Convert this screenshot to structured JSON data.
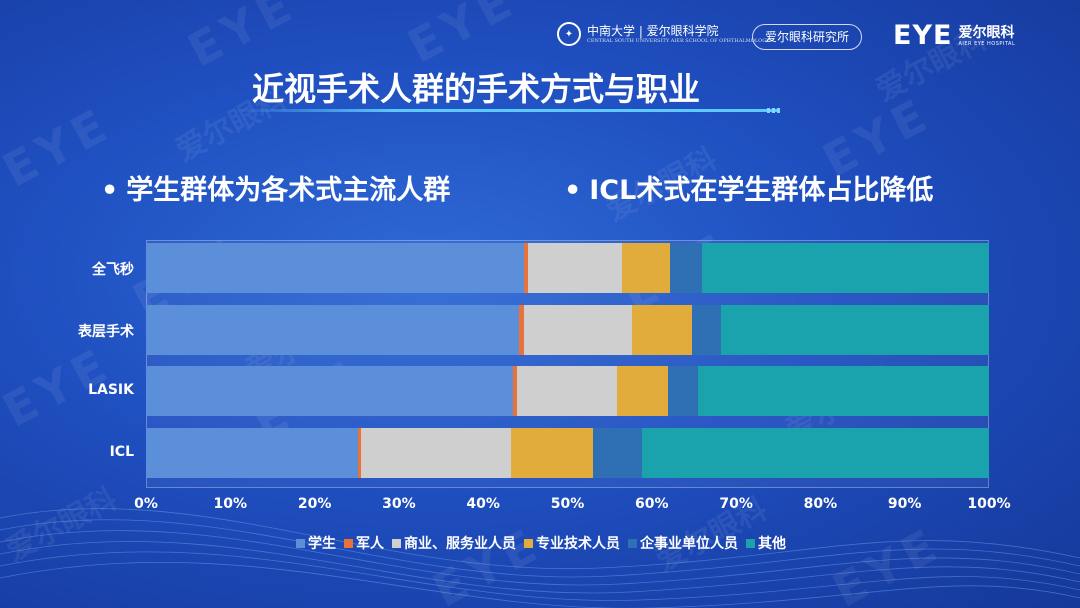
{
  "header": {
    "csu_logo_main": "中南大学 | 爱尔眼科学院",
    "csu_logo_sub": "CENTRAL SOUTH UNIVERSITY   AIER SCHOOL OF OPHTHALMOLOGY",
    "institute_label": "爱尔眼科研究所",
    "eye_logo_mark": "EYE",
    "eye_logo_cn": "爱尔眼科",
    "eye_logo_sub": "AIER EYE HOSPITAL"
  },
  "title": "近视手术人群的手术方式与职业",
  "bullets": {
    "left": "学生群体为各术式主流人群",
    "right": "ICL术式在学生群体占比降低",
    "dot": "•"
  },
  "watermark": {
    "mark": "EYE",
    "cn": "爱尔眼科",
    "en": "AIER EYE HOSPITAL"
  },
  "chart_data": {
    "type": "bar",
    "orientation": "horizontal",
    "stacked": "percent",
    "title": "",
    "categories": [
      "全飞秒",
      "表层手术",
      "LASIK",
      "ICL"
    ],
    "series": [
      {
        "name": "学生",
        "color": "#5b8fd9",
        "values": [
          44.8,
          44.3,
          43.5,
          25.2
        ]
      },
      {
        "name": "军人",
        "color": "#e8733a",
        "values": [
          0.5,
          0.5,
          0.5,
          0.3
        ]
      },
      {
        "name": "商业、服务业人员",
        "color": "#cfcfcf",
        "values": [
          11.2,
          12.8,
          11.9,
          17.8
        ]
      },
      {
        "name": "专业技术人员",
        "color": "#e2ac3c",
        "values": [
          5.7,
          7.2,
          6.0,
          9.7
        ]
      },
      {
        "name": "企事业单位人员",
        "color": "#2e70b3",
        "values": [
          3.7,
          3.4,
          3.6,
          5.8
        ]
      },
      {
        "name": "其他",
        "color": "#1aa3ad",
        "values": [
          34.1,
          31.8,
          34.5,
          41.2
        ]
      }
    ],
    "x_ticks": [
      "0%",
      "10%",
      "20%",
      "30%",
      "40%",
      "50%",
      "60%",
      "70%",
      "80%",
      "90%",
      "100%"
    ],
    "xlim": [
      0,
      100
    ],
    "legend_position": "bottom",
    "grid": false
  }
}
